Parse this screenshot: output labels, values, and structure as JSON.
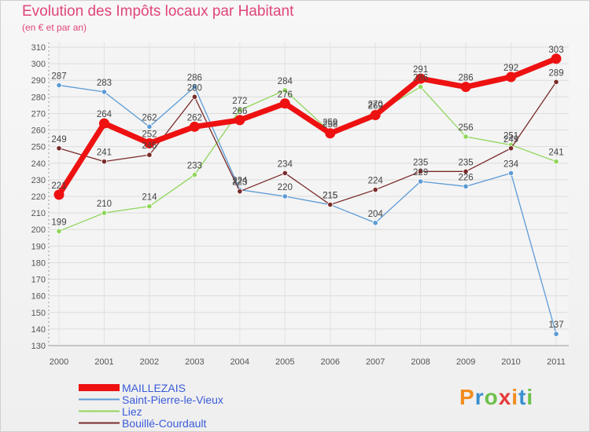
{
  "title": "Evolution des Impôts locaux par Habitant",
  "subtitle": "(en € et par an)",
  "logo": {
    "text": "Proxiti",
    "colors": [
      "#f28c1e",
      "#3a8fd0",
      "#6cc04a",
      "#e53b3b",
      "#f28c1e",
      "#3a8fd0",
      "#6cc04a"
    ]
  },
  "chart_data": {
    "type": "line",
    "title": "Evolution des Impôts locaux par Habitant",
    "subtitle": "(en € et par an)",
    "x": [
      "2000",
      "2001",
      "2002",
      "2003",
      "2004",
      "2005",
      "2006",
      "2007",
      "2008",
      "2009",
      "2010",
      "2011"
    ],
    "ylim": [
      130,
      310
    ],
    "yticks": [
      130,
      140,
      150,
      160,
      170,
      180,
      190,
      200,
      210,
      220,
      230,
      240,
      250,
      260,
      270,
      280,
      290,
      300,
      310
    ],
    "grid": true,
    "series": [
      {
        "name": "MAILLEZAIS",
        "color": "#ee1111",
        "values": [
          221,
          264,
          252,
          262,
          266,
          276,
          258,
          269,
          291,
          286,
          292,
          303
        ]
      },
      {
        "name": "Saint-Pierre-le-Vieux",
        "color": "#5b9bd5",
        "values": [
          287,
          283,
          262,
          286,
          224,
          220,
          215,
          204,
          229,
          226,
          234,
          137
        ]
      },
      {
        "name": "Liez",
        "color": "#8fd65a",
        "values": [
          199,
          210,
          214,
          233,
          272,
          284,
          259,
          270,
          286,
          256,
          251,
          241
        ]
      },
      {
        "name": "Bouillé-Courdault",
        "color": "#7a2a2a",
        "values": [
          249,
          241,
          245,
          280,
          223,
          234,
          215,
          224,
          235,
          235,
          249,
          289
        ]
      }
    ]
  }
}
